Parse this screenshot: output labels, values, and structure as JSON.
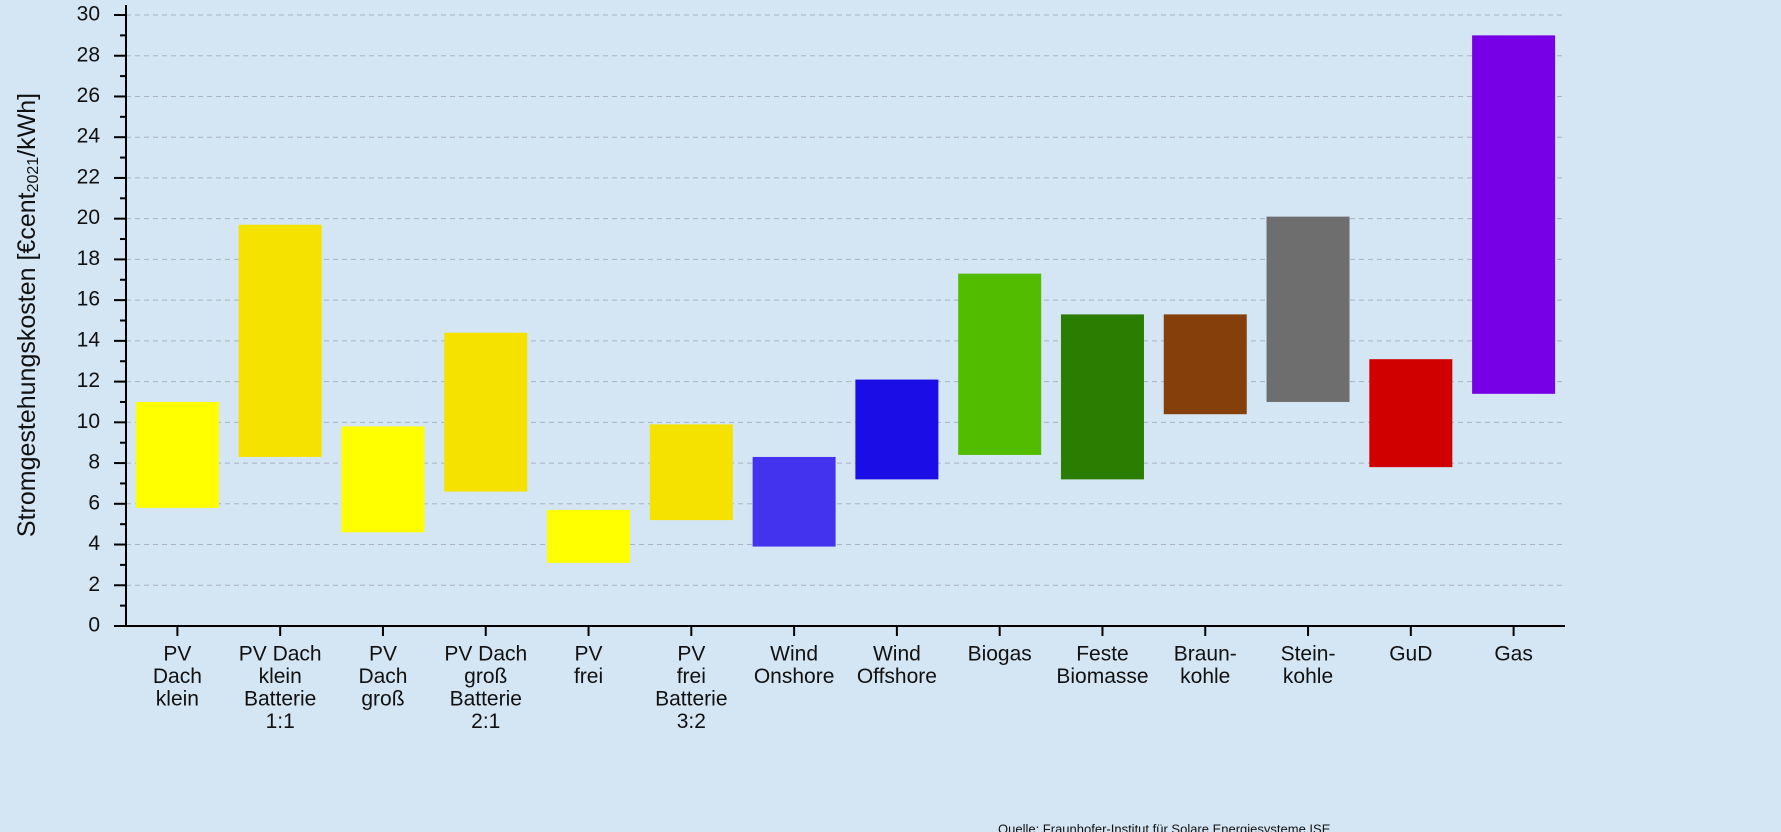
{
  "chart_data": {
    "type": "floating-bar",
    "ylabel": [
      "Stromgestehungskosten [€cent",
      "2021",
      "/kWh]"
    ],
    "categories": [
      [
        "PV",
        "Dach",
        "klein"
      ],
      [
        "PV Dach",
        "klein",
        "Batterie",
        "1:1"
      ],
      [
        "PV",
        "Dach",
        "groß"
      ],
      [
        "PV Dach",
        "groß",
        "Batterie",
        "2:1"
      ],
      [
        "PV",
        "frei"
      ],
      [
        "PV",
        "frei",
        "Batterie",
        "3:2"
      ],
      [
        "Wind",
        "Onshore"
      ],
      [
        "Wind",
        "Offshore"
      ],
      [
        "Biogas"
      ],
      [
        "Feste",
        "Biomasse"
      ],
      [
        "Braun-",
        "kohle"
      ],
      [
        "Stein-",
        "kohle"
      ],
      [
        "GuD"
      ],
      [
        "Gas"
      ]
    ],
    "lows": [
      5.8,
      8.3,
      4.6,
      6.6,
      3.1,
      5.2,
      3.9,
      7.2,
      8.4,
      7.2,
      10.4,
      11.0,
      7.8,
      11.4
    ],
    "highs": [
      11.0,
      19.7,
      9.8,
      14.4,
      5.7,
      9.9,
      8.3,
      12.1,
      17.3,
      15.3,
      15.3,
      20.1,
      13.1,
      29.0
    ],
    "colors": [
      "#ffff00",
      "#f5e200",
      "#ffff00",
      "#f5e200",
      "#ffff00",
      "#f5e200",
      "#4433ee",
      "#1a0de6",
      "#52bc00",
      "#2a7d00",
      "#843f0a",
      "#6e6e6e",
      "#d00000",
      "#7700e6"
    ],
    "ylim": [
      0,
      30
    ],
    "yticks": [
      0,
      2,
      4,
      6,
      8,
      10,
      12,
      14,
      16,
      18,
      20,
      22,
      24,
      26,
      28,
      30
    ],
    "minor_yticks": [
      1,
      3,
      5,
      7,
      9,
      11,
      13,
      15,
      17,
      19,
      21,
      23,
      25,
      27,
      29
    ],
    "grid": true,
    "source": "Quelle: Fraunhofer-Institut für Solare Energiesysteme ISE"
  }
}
